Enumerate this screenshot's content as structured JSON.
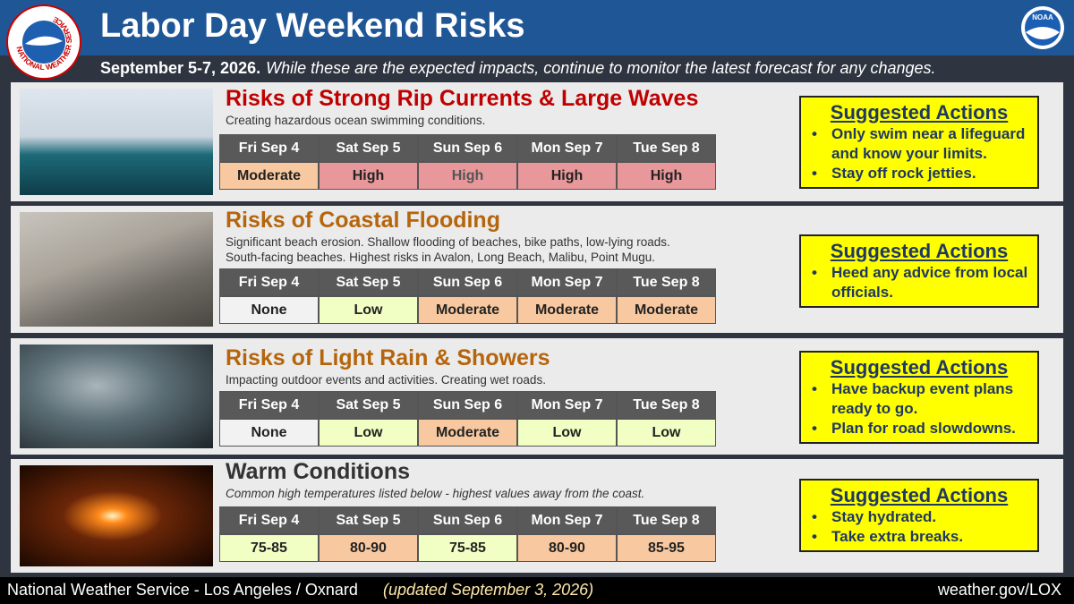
{
  "header": {
    "title": "Labor Day Weekend Risks",
    "date": "September 5-7, 2026.",
    "note": "While these are the expected impacts, continue to monitor the latest forecast for any changes.",
    "logo_left_text": "NATIONAL WEATHER SERVICE",
    "logo_right_text": "NOAA"
  },
  "sections": [
    {
      "title": "Risks of Strong Rip Currents & Large Waves",
      "title_color": "#c00000",
      "description": [
        "Creating hazardous ocean swimming conditions."
      ],
      "days": [
        "Fri Sep 4",
        "Sat Sep 5",
        "Sun Sep 6",
        "Mon Sep 7",
        "Tue Sep 8"
      ],
      "cells": [
        {
          "label": "Moderate",
          "color": "#f8c9a0"
        },
        {
          "label": "High",
          "color": "#e8979b"
        },
        {
          "label": "High",
          "color": "#e8979b"
        },
        {
          "label": "High",
          "color": "#e8979b"
        },
        {
          "label": "High",
          "color": "#e8979b"
        }
      ],
      "actions": {
        "heading": "Suggested Actions",
        "items": [
          "Only swim near a lifeguard and know your limits.",
          "Stay off rock jetties."
        ]
      }
    },
    {
      "title": "Risks of Coastal Flooding",
      "title_color": "#b5650c",
      "description": [
        "Significant beach erosion. Shallow flooding of beaches, bike paths, low-lying roads.",
        "South-facing beaches.  Highest risks in Avalon, Long Beach, Malibu, Point Mugu."
      ],
      "days": [
        "Fri Sep 4",
        "Sat Sep 5",
        "Sun Sep 6",
        "Mon Sep 7",
        "Tue Sep 8"
      ],
      "cells": [
        {
          "label": "None",
          "color": "#f2f2f2"
        },
        {
          "label": "Low",
          "color": "#f1ffc4"
        },
        {
          "label": "Moderate",
          "color": "#f8c9a0"
        },
        {
          "label": "Moderate",
          "color": "#f8c9a0"
        },
        {
          "label": "Moderate",
          "color": "#f8c9a0"
        }
      ],
      "actions": {
        "heading": "Suggested Actions",
        "items": [
          "Heed any advice from local officials."
        ]
      }
    },
    {
      "title": "Risks of Light Rain & Showers",
      "title_color": "#b5650c",
      "description": [
        "Impacting outdoor events and activities. Creating wet roads."
      ],
      "days": [
        "Fri Sep 4",
        "Sat Sep 5",
        "Sun Sep 6",
        "Mon Sep 7",
        "Tue Sep 8"
      ],
      "cells": [
        {
          "label": "None",
          "color": "#f2f2f2"
        },
        {
          "label": "Low",
          "color": "#f1ffc4"
        },
        {
          "label": "Moderate",
          "color": "#f8c9a0"
        },
        {
          "label": "Low",
          "color": "#f1ffc4"
        },
        {
          "label": "Low",
          "color": "#f1ffc4"
        }
      ],
      "actions": {
        "heading": "Suggested Actions",
        "items": [
          "Have backup event plans ready to go.",
          "Plan for road slowdowns."
        ]
      }
    },
    {
      "title": "Warm Conditions",
      "title_color": "#333333",
      "description": [
        "Common high temperatures listed below - highest values away from the coast."
      ],
      "days": [
        "Fri Sep 4",
        "Sat Sep 5",
        "Sun Sep 6",
        "Mon Sep 7",
        "Tue Sep 8"
      ],
      "cells": [
        {
          "label": "75-85",
          "color": "#f1ffc4"
        },
        {
          "label": "80-90",
          "color": "#f8c9a0"
        },
        {
          "label": "75-85",
          "color": "#f1ffc4"
        },
        {
          "label": "80-90",
          "color": "#f8c9a0"
        },
        {
          "label": "85-95",
          "color": "#f8c9a0"
        }
      ],
      "actions": {
        "heading": "Suggested Actions",
        "items": [
          "Stay hydrated.",
          "Take extra breaks."
        ]
      }
    }
  ],
  "footer": {
    "office": "National Weather Service - Los Angeles / Oxnard",
    "updated": "(updated September 3, 2026)",
    "url": "weather.gov/LOX"
  }
}
